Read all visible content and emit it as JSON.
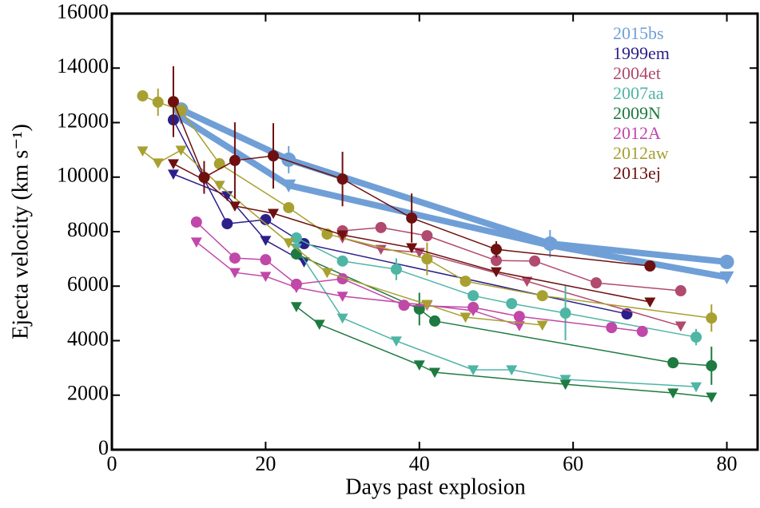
{
  "chart_data": {
    "type": "line",
    "xlabel": "Days past explosion",
    "ylabel": "Ejecta velocity (km s⁻¹)",
    "xlim": [
      0,
      84
    ],
    "ylim": [
      0,
      16000
    ],
    "xticks": [
      0,
      20,
      40,
      60,
      80
    ],
    "yticks": [
      0,
      2000,
      4000,
      6000,
      8000,
      10000,
      12000,
      14000,
      16000
    ],
    "legend": "upper right",
    "series": [
      {
        "name": "2015bs",
        "color": "#6f9fd6",
        "linewidth": 8,
        "lines": [
          {
            "marker": "circle",
            "x": [
              9,
              23,
              57,
              80
            ],
            "values": [
              12480,
              10640,
              7560,
              6890
            ],
            "errors": [
              null,
              500,
              500,
              null
            ]
          },
          {
            "marker": "triangle",
            "x": [
              9,
              23,
              57,
              80
            ],
            "values": [
              12190,
              9700,
              7500,
              6330
            ]
          }
        ]
      },
      {
        "name": "1999em",
        "color": "#2c1f8a",
        "linewidth": 1.5,
        "lines": [
          {
            "marker": "circle",
            "x": [
              8,
              15,
              20,
              25,
              67
            ],
            "values": [
              12100,
              8290,
              8440,
              7560,
              4980
            ]
          },
          {
            "marker": "triangle",
            "x": [
              8,
              15,
              20,
              25
            ],
            "values": [
              10110,
              9320,
              7680,
              6890
            ]
          }
        ]
      },
      {
        "name": "2004et",
        "color": "#b04a6e",
        "linewidth": 1.5,
        "lines": [
          {
            "marker": "circle",
            "x": [
              30,
              35,
              41,
              50,
              55,
              63,
              74
            ],
            "values": [
              8030,
              8150,
              7850,
              6940,
              6920,
              6120,
              5830
            ]
          },
          {
            "marker": "triangle",
            "x": [
              30,
              35,
              40,
              54,
              74
            ],
            "values": [
              7770,
              7350,
              7240,
              6180,
              4540
            ]
          }
        ]
      },
      {
        "name": "2007aa",
        "color": "#4fb5a5",
        "linewidth": 1.5,
        "lines": [
          {
            "marker": "circle",
            "x": [
              24,
              30,
              37,
              47,
              52,
              59,
              76
            ],
            "values": [
              7770,
              6920,
              6620,
              5650,
              5360,
              5010,
              4130
            ],
            "errors": [
              null,
              null,
              400,
              null,
              null,
              1000,
              300
            ]
          },
          {
            "marker": "triangle",
            "x": [
              24,
              30,
              37,
              47,
              52,
              59,
              76
            ],
            "values": [
              7400,
              4830,
              3990,
              2930,
              2930,
              2580,
              2310
            ]
          }
        ]
      },
      {
        "name": "2009N",
        "color": "#1e7a40",
        "linewidth": 1.5,
        "lines": [
          {
            "marker": "circle",
            "x": [
              24,
              40,
              42,
              73,
              78
            ],
            "values": [
              7180,
              5160,
              4720,
              3190,
              3080
            ],
            "errors": [
              null,
              600,
              null,
              null,
              700
            ]
          },
          {
            "marker": "triangle",
            "x": [
              24,
              27,
              40,
              42,
              59,
              73,
              78
            ],
            "values": [
              5250,
              4600,
              3110,
              2840,
              2400,
              2080,
              1930
            ]
          }
        ]
      },
      {
        "name": "2012A",
        "color": "#c048a8",
        "linewidth": 1.5,
        "lines": [
          {
            "marker": "circle",
            "x": [
              11,
              16,
              20,
              24,
              30,
              38,
              47,
              53,
              65,
              69
            ],
            "values": [
              8350,
              7030,
              6970,
              6070,
              6270,
              5300,
              5220,
              4890,
              4480,
              4340
            ]
          },
          {
            "marker": "triangle",
            "x": [
              11,
              16,
              20,
              24,
              30,
              41,
              47,
              53
            ],
            "values": [
              7620,
              6500,
              6360,
              5950,
              5630,
              5300,
              5100,
              4550
            ]
          }
        ]
      },
      {
        "name": "2012aw",
        "color": "#a8a030",
        "linewidth": 1.5,
        "lines": [
          {
            "marker": "circle",
            "x": [
              4,
              6,
              9,
              14,
              23,
              28,
              41,
              46,
              56,
              78
            ],
            "values": [
              12980,
              12750,
              12450,
              10490,
              8880,
              7910,
              7000,
              6180,
              5650,
              4830
            ],
            "errors": [
              null,
              500,
              null,
              null,
              null,
              null,
              600,
              null,
              null,
              500
            ]
          },
          {
            "marker": "triangle",
            "x": [
              4,
              6,
              9,
              14,
              23,
              28,
              41,
              46,
              56
            ],
            "values": [
              10960,
              10520,
              10990,
              9700,
              7590,
              6500,
              5330,
              4860,
              4570
            ]
          }
        ]
      },
      {
        "name": "2013ej",
        "color": "#6e1010",
        "linewidth": 1.5,
        "lines": [
          {
            "marker": "circle",
            "x": [
              8,
              12,
              16,
              21,
              30,
              39,
              50,
              70
            ],
            "values": [
              12770,
              9990,
              10610,
              10780,
              9930,
              8500,
              7350,
              6740
            ],
            "errors": [
              1300,
              600,
              1400,
              1200,
              1000,
              900,
              300,
              null
            ]
          },
          {
            "marker": "triangle",
            "x": [
              8,
              12,
              16,
              21,
              30,
              39,
              50,
              70
            ],
            "values": [
              10490,
              9900,
              8940,
              8670,
              7880,
              7410,
              6530,
              5420
            ]
          }
        ]
      }
    ]
  }
}
